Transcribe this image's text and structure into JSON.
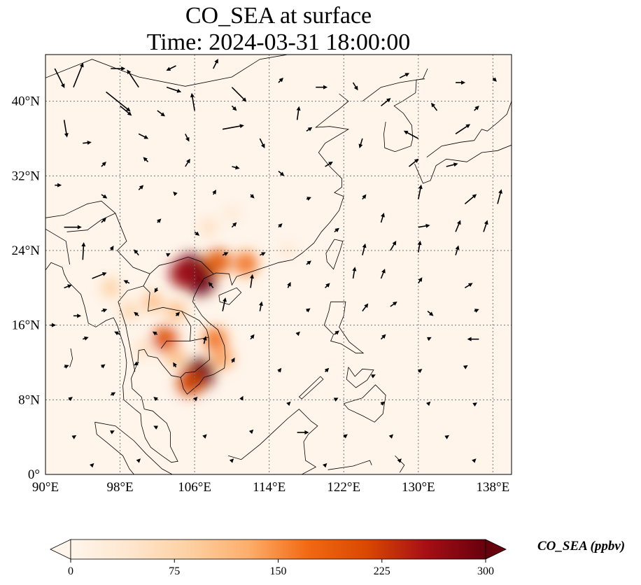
{
  "title_line1": "CO_SEA at surface",
  "title_line2": "Time: 2024-03-31 18:00:00",
  "map": {
    "lon_range": [
      90,
      140
    ],
    "lat_range": [
      0,
      45
    ],
    "lon_ticks": [
      {
        "value": 90,
        "label": "90°E"
      },
      {
        "value": 98,
        "label": "98°E"
      },
      {
        "value": 106,
        "label": "106°E"
      },
      {
        "value": 114,
        "label": "114°E"
      },
      {
        "value": 122,
        "label": "122°E"
      },
      {
        "value": 130,
        "label": "130°E"
      },
      {
        "value": 138,
        "label": "138°E"
      }
    ],
    "lat_ticks": [
      {
        "value": 0,
        "label": "0°"
      },
      {
        "value": 8,
        "label": "8°N"
      },
      {
        "value": 16,
        "label": "16°N"
      },
      {
        "value": 24,
        "label": "24°N"
      },
      {
        "value": 32,
        "label": "32°N"
      },
      {
        "value": 40,
        "label": "40°N"
      }
    ],
    "gridlines": true,
    "background_color": "#fff5eb",
    "hotspots": [
      {
        "lon": 105.6,
        "lat": 22.0,
        "value": 300
      },
      {
        "lon": 106.6,
        "lat": 20.8,
        "value": 300
      },
      {
        "lon": 104.8,
        "lat": 21.5,
        "value": 260
      },
      {
        "lon": 108.5,
        "lat": 22.8,
        "value": 200
      },
      {
        "lon": 111.5,
        "lat": 22.6,
        "value": 170
      },
      {
        "lon": 106.5,
        "lat": 10.8,
        "value": 300
      },
      {
        "lon": 105.5,
        "lat": 9.8,
        "value": 220
      },
      {
        "lon": 108.2,
        "lat": 14.5,
        "value": 170
      },
      {
        "lon": 109.0,
        "lat": 12.5,
        "value": 140
      },
      {
        "lon": 102.8,
        "lat": 14.5,
        "value": 210
      },
      {
        "lon": 101.5,
        "lat": 18.5,
        "value": 110
      },
      {
        "lon": 104.0,
        "lat": 17.5,
        "value": 110
      },
      {
        "lon": 97.0,
        "lat": 20.0,
        "value": 90
      },
      {
        "lon": 99.0,
        "lat": 17.5,
        "value": 80
      },
      {
        "lon": 107.5,
        "lat": 26.5,
        "value": 60
      },
      {
        "lon": 110.0,
        "lat": 28.0,
        "value": 40
      },
      {
        "lon": 116.0,
        "lat": 24.0,
        "value": 40
      },
      {
        "lon": 100.5,
        "lat": 13.5,
        "value": 60
      },
      {
        "lon": 104.0,
        "lat": 12.5,
        "value": 110
      }
    ],
    "wind_vectors": [
      {
        "lon": 91,
        "lat": 43.5,
        "u": 1,
        "v": -2
      },
      {
        "lon": 97,
        "lat": 43.5,
        "u": 1.5,
        "v": 0
      },
      {
        "lon": 104,
        "lat": 43.8,
        "u": -1,
        "v": -0.5
      },
      {
        "lon": 108,
        "lat": 43.5,
        "u": 0.5,
        "v": 1
      },
      {
        "lon": 93,
        "lat": 41.5,
        "u": 1,
        "v": 2.5
      },
      {
        "lon": 96.5,
        "lat": 41,
        "u": 2.5,
        "v": -2
      },
      {
        "lon": 100,
        "lat": 41.5,
        "u": -1.2,
        "v": 1.8
      },
      {
        "lon": 103,
        "lat": 41.5,
        "u": 1.5,
        "v": -0.5
      },
      {
        "lon": 110,
        "lat": 41.5,
        "u": 1.5,
        "v": -1.5
      },
      {
        "lon": 115,
        "lat": 42,
        "u": 0.5,
        "v": 0.5
      },
      {
        "lon": 119,
        "lat": 41.5,
        "u": 1.2,
        "v": 0
      },
      {
        "lon": 123,
        "lat": 42,
        "u": 0.5,
        "v": -0.8
      },
      {
        "lon": 128,
        "lat": 42.5,
        "u": 1,
        "v": 0.5
      },
      {
        "lon": 134,
        "lat": 42,
        "u": 1,
        "v": 0
      },
      {
        "lon": 138,
        "lat": 42.5,
        "u": 0.4,
        "v": -0.4
      },
      {
        "lon": 92,
        "lat": 38,
        "u": 0.3,
        "v": -1.8
      },
      {
        "lon": 98,
        "lat": 39.5,
        "u": 1.2,
        "v": -1
      },
      {
        "lon": 102,
        "lat": 39,
        "u": 0.8,
        "v": -0.6
      },
      {
        "lon": 106,
        "lat": 39,
        "u": -0.3,
        "v": 1.8
      },
      {
        "lon": 110,
        "lat": 39.5,
        "u": 0.5,
        "v": -0.5
      },
      {
        "lon": 117,
        "lat": 38,
        "u": 0.2,
        "v": 1.4
      },
      {
        "lon": 126,
        "lat": 39.5,
        "u": 1,
        "v": 0.8
      },
      {
        "lon": 132,
        "lat": 39,
        "u": -0.6,
        "v": 0.8
      },
      {
        "lon": 136,
        "lat": 39,
        "u": 0.5,
        "v": 0.5
      },
      {
        "lon": 94,
        "lat": 35.5,
        "u": 0.9,
        "v": 0.1
      },
      {
        "lon": 100,
        "lat": 36.5,
        "u": 1,
        "v": -0.5
      },
      {
        "lon": 105,
        "lat": 36.5,
        "u": 0.4,
        "v": -0.8
      },
      {
        "lon": 109,
        "lat": 37,
        "u": 2.2,
        "v": 0.4
      },
      {
        "lon": 113,
        "lat": 36,
        "u": 0.5,
        "v": -1
      },
      {
        "lon": 118,
        "lat": 36.8,
        "u": 0.6,
        "v": 0.4
      },
      {
        "lon": 124,
        "lat": 36,
        "u": -0.3,
        "v": -1
      },
      {
        "lon": 130,
        "lat": 36,
        "u": -1.5,
        "v": 0.8
      },
      {
        "lon": 134,
        "lat": 36.5,
        "u": 1.5,
        "v": 1
      },
      {
        "lon": 96,
        "lat": 33,
        "u": 0.5,
        "v": 0.5
      },
      {
        "lon": 101,
        "lat": 33.5,
        "u": -0.5,
        "v": 0.5
      },
      {
        "lon": 105,
        "lat": 33,
        "u": 0.5,
        "v": 0.8
      },
      {
        "lon": 110,
        "lat": 33,
        "u": 0.8,
        "v": -0.2
      },
      {
        "lon": 115,
        "lat": 32.5,
        "u": 0.6,
        "v": -0.5
      },
      {
        "lon": 120,
        "lat": 33,
        "u": 0.8,
        "v": 0.5
      },
      {
        "lon": 129,
        "lat": 33,
        "u": 1,
        "v": 0.8
      },
      {
        "lon": 133,
        "lat": 33,
        "u": 1.2,
        "v": 0.3
      },
      {
        "lon": 91,
        "lat": 31,
        "u": 0.7,
        "v": 0
      },
      {
        "lon": 96,
        "lat": 30,
        "u": 0.6,
        "v": -0.4
      },
      {
        "lon": 100,
        "lat": 30.5,
        "u": 0.5,
        "v": 0.5
      },
      {
        "lon": 104,
        "lat": 30,
        "u": -0.3,
        "v": 0.3
      },
      {
        "lon": 108,
        "lat": 30,
        "u": 0.3,
        "v": 0.5
      },
      {
        "lon": 112,
        "lat": 30,
        "u": 0.4,
        "v": -0.4
      },
      {
        "lon": 118,
        "lat": 29.5,
        "u": 0.5,
        "v": 0.2
      },
      {
        "lon": 124,
        "lat": 29.5,
        "u": 0.4,
        "v": 0.5
      },
      {
        "lon": 130,
        "lat": 29.5,
        "u": 0.3,
        "v": 1.5
      },
      {
        "lon": 135,
        "lat": 29,
        "u": 1.2,
        "v": 1
      },
      {
        "lon": 138.5,
        "lat": 29,
        "u": 0.4,
        "v": 1.5
      },
      {
        "lon": 92,
        "lat": 26.5,
        "u": 1.8,
        "v": 0
      },
      {
        "lon": 96,
        "lat": 27,
        "u": 0.5,
        "v": 0.5
      },
      {
        "lon": 102,
        "lat": 27,
        "u": 0.4,
        "v": 0.4
      },
      {
        "lon": 106,
        "lat": 26,
        "u": 0.5,
        "v": -0.4
      },
      {
        "lon": 110,
        "lat": 26.5,
        "u": 0.5,
        "v": 0.5
      },
      {
        "lon": 115,
        "lat": 26.5,
        "u": 0.4,
        "v": 0.4
      },
      {
        "lon": 121,
        "lat": 26,
        "u": 0.5,
        "v": 0.4
      },
      {
        "lon": 126,
        "lat": 27,
        "u": 0.3,
        "v": 1
      },
      {
        "lon": 130,
        "lat": 26.5,
        "u": 1.2,
        "v": 0.2
      },
      {
        "lon": 134,
        "lat": 26,
        "u": 0.5,
        "v": 1.2
      },
      {
        "lon": 137,
        "lat": 26,
        "u": 0.4,
        "v": 1.2
      },
      {
        "lon": 94,
        "lat": 23,
        "u": 0.1,
        "v": 1.8
      },
      {
        "lon": 97,
        "lat": 24,
        "u": 0.3,
        "v": 0.5
      },
      {
        "lon": 100,
        "lat": 23.5,
        "u": -0.5,
        "v": 0.6
      },
      {
        "lon": 103,
        "lat": 23.5,
        "u": 0.4,
        "v": 0.2
      },
      {
        "lon": 109,
        "lat": 23.5,
        "u": 0.6,
        "v": 0.3
      },
      {
        "lon": 113,
        "lat": 23.5,
        "u": 0.6,
        "v": 0.3
      },
      {
        "lon": 118,
        "lat": 22.5,
        "u": 0.5,
        "v": 0.4
      },
      {
        "lon": 124,
        "lat": 23.5,
        "u": 0.3,
        "v": 1.2
      },
      {
        "lon": 127,
        "lat": 24,
        "u": 0.6,
        "v": 1
      },
      {
        "lon": 130,
        "lat": 23.8,
        "u": 0.2,
        "v": 1.2
      },
      {
        "lon": 134,
        "lat": 23.5,
        "u": 0.3,
        "v": 1
      },
      {
        "lon": 92,
        "lat": 20,
        "u": 0.8,
        "v": 0.3
      },
      {
        "lon": 95,
        "lat": 21,
        "u": 1.5,
        "v": 0.6
      },
      {
        "lon": 99,
        "lat": 20.5,
        "u": -0.6,
        "v": 0.3
      },
      {
        "lon": 102,
        "lat": 20,
        "u": -0.3,
        "v": -0.5
      },
      {
        "lon": 108,
        "lat": 20,
        "u": -0.5,
        "v": 0.6
      },
      {
        "lon": 112,
        "lat": 20,
        "u": 0.2,
        "v": 1.4
      },
      {
        "lon": 116,
        "lat": 20,
        "u": 0.3,
        "v": 0.6
      },
      {
        "lon": 120,
        "lat": 20,
        "u": 0.5,
        "v": 0.5
      },
      {
        "lon": 123,
        "lat": 21,
        "u": 0.2,
        "v": 1.2
      },
      {
        "lon": 126,
        "lat": 21,
        "u": 0.4,
        "v": 1
      },
      {
        "lon": 130,
        "lat": 20.5,
        "u": 0.4,
        "v": 0.6
      },
      {
        "lon": 135,
        "lat": 20,
        "u": 0.8,
        "v": 0.5
      },
      {
        "lon": 93,
        "lat": 17,
        "u": 0.8,
        "v": 0
      },
      {
        "lon": 96,
        "lat": 17.5,
        "u": 0.6,
        "v": 0.2
      },
      {
        "lon": 100,
        "lat": 17,
        "u": -0.5,
        "v": 0.4
      },
      {
        "lon": 104,
        "lat": 17,
        "u": 0.4,
        "v": 0.4
      },
      {
        "lon": 109,
        "lat": 17.5,
        "u": 0.3,
        "v": 1.4
      },
      {
        "lon": 113,
        "lat": 17.5,
        "u": 0.2,
        "v": 1
      },
      {
        "lon": 118,
        "lat": 17.5,
        "u": 0.4,
        "v": 0.3
      },
      {
        "lon": 124,
        "lat": 17.5,
        "u": 0.6,
        "v": 0.8
      },
      {
        "lon": 127,
        "lat": 18,
        "u": 0.7,
        "v": 0.5
      },
      {
        "lon": 131,
        "lat": 17.5,
        "u": 0.6,
        "v": -0.5
      },
      {
        "lon": 136,
        "lat": 17.5,
        "u": 0.5,
        "v": 0.2
      },
      {
        "lon": 90.5,
        "lat": 16,
        "u": 0.6,
        "v": 0
      },
      {
        "lon": 94,
        "lat": 14.5,
        "u": 0.6,
        "v": 0.2
      },
      {
        "lon": 98,
        "lat": 15,
        "u": -0.6,
        "v": 0.3
      },
      {
        "lon": 102,
        "lat": 15,
        "u": -0.5,
        "v": 0.3
      },
      {
        "lon": 107,
        "lat": 14,
        "u": 0.2,
        "v": 0.8
      },
      {
        "lon": 112,
        "lat": 14.5,
        "u": 0.4,
        "v": 0.5
      },
      {
        "lon": 117,
        "lat": 15,
        "u": 0.3,
        "v": 0.3
      },
      {
        "lon": 121,
        "lat": 15,
        "u": 0.5,
        "v": 0.4
      },
      {
        "lon": 126,
        "lat": 14.5,
        "u": 0.5,
        "v": 0.5
      },
      {
        "lon": 131,
        "lat": 14.5,
        "u": 0.4,
        "v": 0.2
      },
      {
        "lon": 136.5,
        "lat": 14.5,
        "u": -1.2,
        "v": 0
      },
      {
        "lon": 92,
        "lat": 11.5,
        "u": 0.5,
        "v": 0.2
      },
      {
        "lon": 96,
        "lat": 11.5,
        "u": 0.4,
        "v": 0.3
      },
      {
        "lon": 100,
        "lat": 12,
        "u": -0.5,
        "v": -0.3
      },
      {
        "lon": 104,
        "lat": 11.5,
        "u": -0.3,
        "v": 0.5
      },
      {
        "lon": 110,
        "lat": 12,
        "u": 0.3,
        "v": 0.5
      },
      {
        "lon": 115,
        "lat": 11,
        "u": 0.3,
        "v": 0.4
      },
      {
        "lon": 120,
        "lat": 11,
        "u": 0.4,
        "v": 0.4
      },
      {
        "lon": 125,
        "lat": 10.5,
        "u": 0.4,
        "v": 0.2
      },
      {
        "lon": 130,
        "lat": 11,
        "u": 0.4,
        "v": 0.3
      },
      {
        "lon": 135,
        "lat": 11.5,
        "u": 0.3,
        "v": 0.2
      },
      {
        "lon": 92.5,
        "lat": 8,
        "u": 0.4,
        "v": 0.3
      },
      {
        "lon": 97,
        "lat": 8.5,
        "u": 0.5,
        "v": 0.3
      },
      {
        "lon": 102,
        "lat": 8,
        "u": -0.4,
        "v": 0.3
      },
      {
        "lon": 106,
        "lat": 8,
        "u": 0.3,
        "v": 0.3
      },
      {
        "lon": 111,
        "lat": 8,
        "u": 0.2,
        "v": 0.4
      },
      {
        "lon": 116,
        "lat": 7.5,
        "u": 0.3,
        "v": 0.3
      },
      {
        "lon": 121,
        "lat": 8,
        "u": 0.4,
        "v": 0.2
      },
      {
        "lon": 126,
        "lat": 7.5,
        "u": 0.4,
        "v": 0.3
      },
      {
        "lon": 131,
        "lat": 7.5,
        "u": 0.3,
        "v": 0.3
      },
      {
        "lon": 136,
        "lat": 7.5,
        "u": 0.3,
        "v": 0.2
      },
      {
        "lon": 93,
        "lat": 4,
        "u": 0.3,
        "v": 0.2
      },
      {
        "lon": 97,
        "lat": 4.5,
        "u": 0.4,
        "v": 0.2
      },
      {
        "lon": 102,
        "lat": 5,
        "u": -0.4,
        "v": 0.2
      },
      {
        "lon": 107,
        "lat": 4,
        "u": 0.3,
        "v": 0.3
      },
      {
        "lon": 112,
        "lat": 4.5,
        "u": 0.3,
        "v": 0.3
      },
      {
        "lon": 117,
        "lat": 4.5,
        "u": 1.2,
        "v": 0
      },
      {
        "lon": 122,
        "lat": 4,
        "u": 0.4,
        "v": 0.3
      },
      {
        "lon": 127,
        "lat": 4,
        "u": 0.3,
        "v": 0.3
      },
      {
        "lon": 133,
        "lat": 4,
        "u": 0.3,
        "v": 0.2
      },
      {
        "lon": 95,
        "lat": 1,
        "u": 0.2,
        "v": 0.2
      },
      {
        "lon": 100,
        "lat": 1.5,
        "u": 0.2,
        "v": 0.2
      },
      {
        "lon": 110,
        "lat": 1.5,
        "u": 0.2,
        "v": 0.2
      },
      {
        "lon": 120,
        "lat": 1,
        "u": 0.2,
        "v": 0.2
      },
      {
        "lon": 128,
        "lat": 1.5,
        "u": 0.2,
        "v": 0.2
      },
      {
        "lon": 136,
        "lat": 1.5,
        "u": 0.2,
        "v": 0.2
      }
    ]
  },
  "colorbar": {
    "label": "CO_SEA (ppbv)",
    "min": 0,
    "max": 300,
    "extend": "both",
    "ticks": [
      {
        "value": 0,
        "label": "0"
      },
      {
        "value": 75,
        "label": "75"
      },
      {
        "value": 150,
        "label": "150"
      },
      {
        "value": 225,
        "label": "225"
      },
      {
        "value": 300,
        "label": "300"
      }
    ],
    "colormap": [
      "#fff5eb",
      "#fee6ce",
      "#fdd0a2",
      "#fdae6b",
      "#f16913",
      "#d94801",
      "#a50f15",
      "#67000d"
    ]
  }
}
